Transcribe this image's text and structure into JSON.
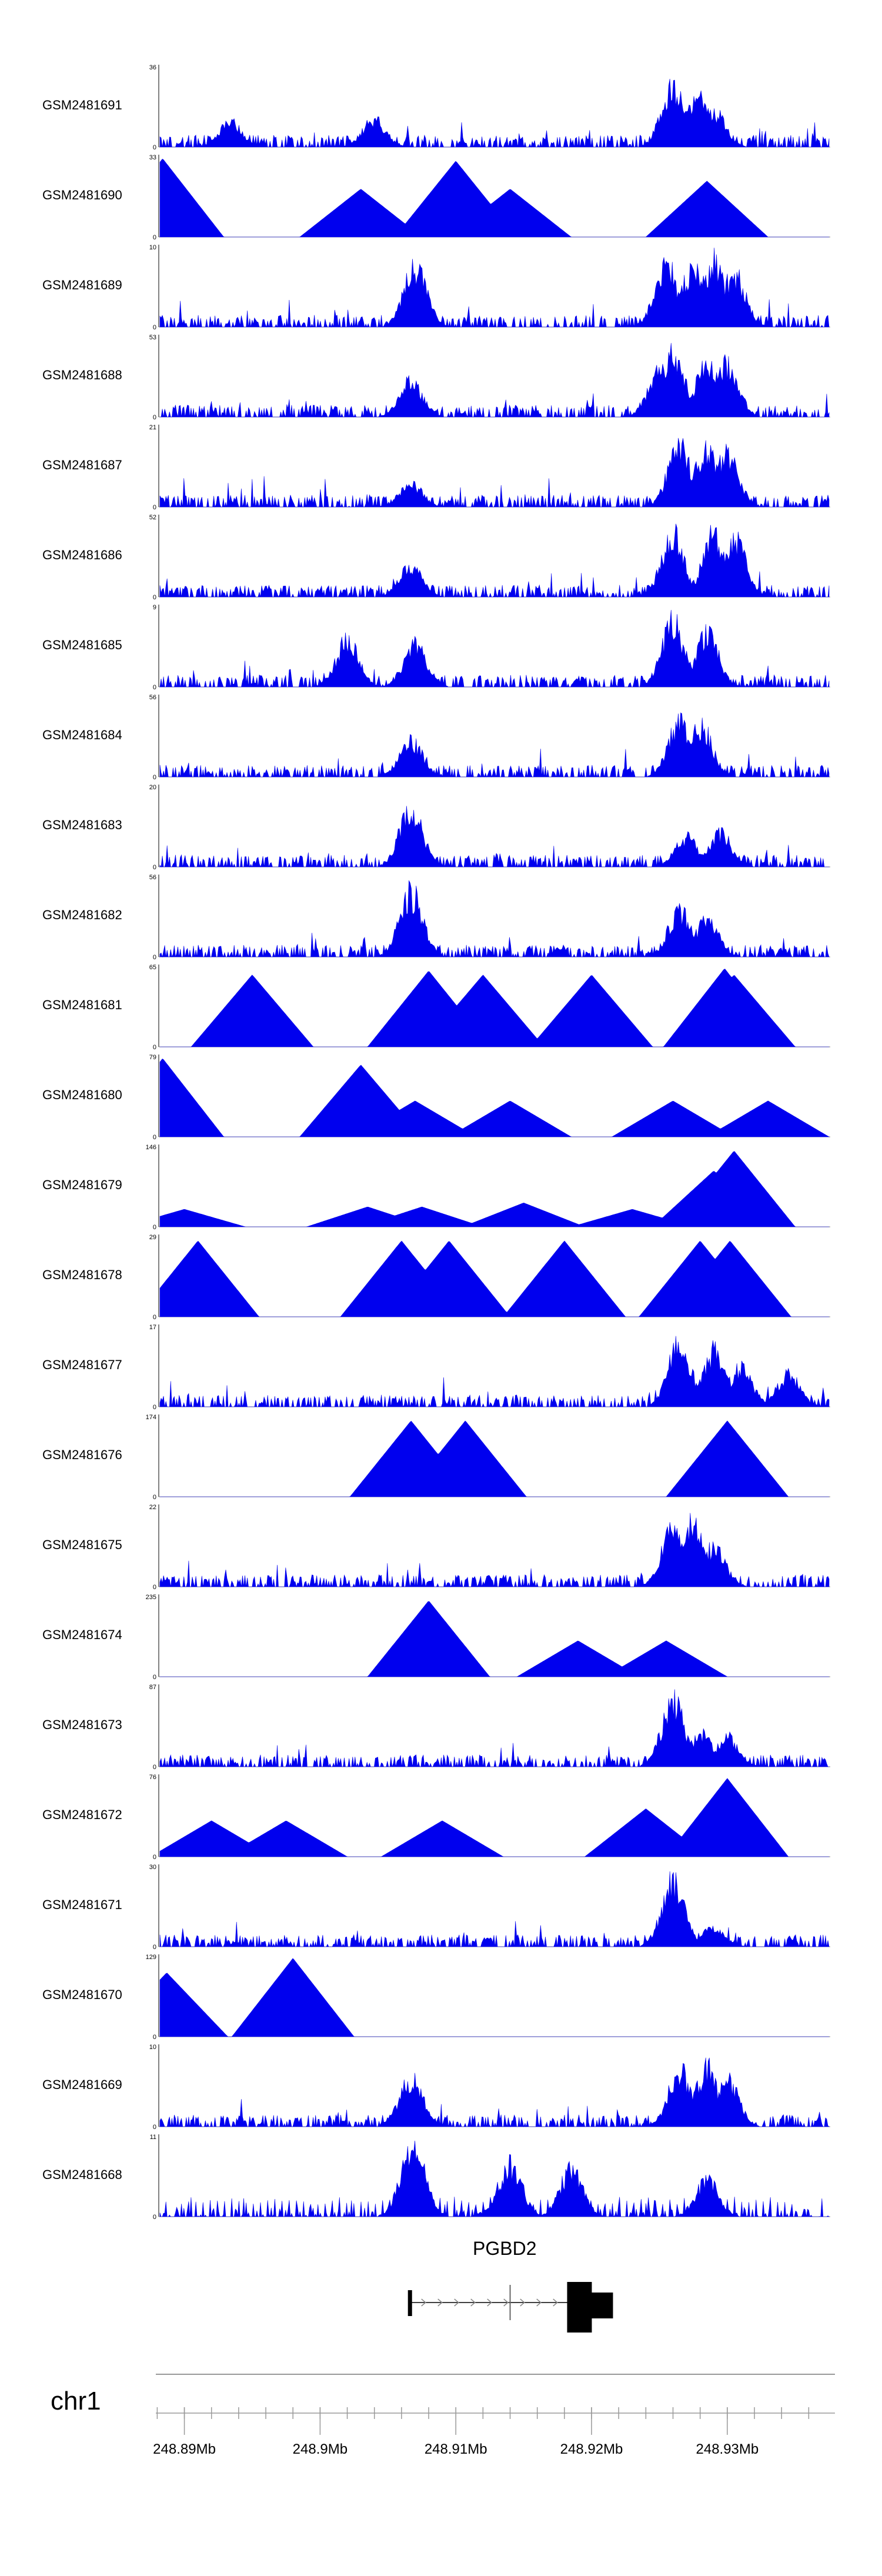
{
  "chart_data": {
    "type": "area",
    "title": "",
    "chromosome": "chr1",
    "xlim_mb": [
      248.8882,
      248.9375
    ],
    "x_ticks": [
      {
        "value": 248.89,
        "label": "248.89Mb"
      },
      {
        "value": 248.9,
        "label": "248.9Mb"
      },
      {
        "value": 248.91,
        "label": "248.91Mb"
      },
      {
        "value": 248.92,
        "label": "248.92Mb"
      },
      {
        "value": 248.93,
        "label": "248.93Mb"
      }
    ],
    "gene": {
      "name": "PGBD2",
      "start_mb": 248.9066,
      "end_mb": 248.9207,
      "exon_mb": [
        248.9066,
        248.914,
        248.919,
        248.9203
      ]
    },
    "series": [
      {
        "name": "GSM2481691",
        "max": 36,
        "min": 0,
        "shape": "dense",
        "peaks": [
          [
            248.8934,
            0.38
          ],
          [
            248.904,
            0.42
          ],
          [
            248.926,
            0.95
          ],
          [
            248.928,
            0.8
          ],
          [
            248.929,
            0.55
          ],
          [
            248.927,
            0.6
          ]
        ]
      },
      {
        "name": "GSM2481690",
        "max": 33,
        "min": 0,
        "shape": "sparse",
        "peaks": [
          [
            248.8884,
            0.98
          ],
          [
            248.903,
            0.6
          ],
          [
            248.91,
            0.95
          ],
          [
            248.914,
            0.6
          ],
          [
            248.9285,
            0.7
          ]
        ]
      },
      {
        "name": "GSM2481689",
        "max": 10,
        "min": 0,
        "shape": "dense",
        "peaks": [
          [
            248.907,
            0.9
          ],
          [
            248.9255,
            0.95
          ],
          [
            248.9275,
            0.9
          ],
          [
            248.929,
            1.0
          ],
          [
            248.9305,
            0.8
          ]
        ]
      },
      {
        "name": "GSM2481688",
        "max": 53,
        "min": 0,
        "shape": "dense",
        "peaks": [
          [
            248.9067,
            0.55
          ],
          [
            248.926,
            1.0
          ],
          [
            248.9285,
            0.85
          ],
          [
            248.93,
            0.8
          ],
          [
            248.925,
            0.7
          ]
        ]
      },
      {
        "name": "GSM2481687",
        "max": 21,
        "min": 0,
        "shape": "dense",
        "peaks": [
          [
            248.9067,
            0.35
          ],
          [
            248.9265,
            0.95
          ],
          [
            248.9285,
            0.9
          ],
          [
            248.93,
            0.8
          ]
        ]
      },
      {
        "name": "GSM2481686",
        "max": 52,
        "min": 0,
        "shape": "dense",
        "peaks": [
          [
            248.9067,
            0.48
          ],
          [
            248.926,
            0.95
          ],
          [
            248.929,
            0.95
          ],
          [
            248.9305,
            0.9
          ]
        ]
      },
      {
        "name": "GSM2481685",
        "max": 9,
        "min": 0,
        "shape": "dense",
        "peaks": [
          [
            248.902,
            0.7
          ],
          [
            248.907,
            0.65
          ],
          [
            248.926,
            0.98
          ],
          [
            248.9285,
            0.8
          ]
        ]
      },
      {
        "name": "GSM2481684",
        "max": 56,
        "min": 0,
        "shape": "dense",
        "peaks": [
          [
            248.9067,
            0.55
          ],
          [
            248.9265,
            0.85
          ],
          [
            248.928,
            0.8
          ]
        ]
      },
      {
        "name": "GSM2481683",
        "max": 20,
        "min": 0,
        "shape": "dense",
        "peaks": [
          [
            248.9067,
            0.9
          ],
          [
            248.927,
            0.45
          ],
          [
            248.9295,
            0.5
          ]
        ]
      },
      {
        "name": "GSM2481682",
        "max": 56,
        "min": 0,
        "shape": "dense",
        "peaks": [
          [
            248.9067,
            0.98
          ],
          [
            248.9265,
            0.7
          ],
          [
            248.9285,
            0.55
          ]
        ]
      },
      {
        "name": "GSM2481681",
        "max": 65,
        "min": 0,
        "shape": "sparse",
        "peaks": [
          [
            248.895,
            0.9
          ],
          [
            248.908,
            0.95
          ],
          [
            248.912,
            0.9
          ],
          [
            248.92,
            0.9
          ],
          [
            248.9298,
            0.98
          ],
          [
            248.9305,
            0.9
          ]
        ]
      },
      {
        "name": "GSM2481680",
        "max": 79,
        "min": 0,
        "shape": "sparse",
        "peaks": [
          [
            248.8884,
            0.98
          ],
          [
            248.903,
            0.9
          ],
          [
            248.907,
            0.45
          ],
          [
            248.914,
            0.45
          ],
          [
            248.926,
            0.45
          ],
          [
            248.933,
            0.45
          ]
        ]
      },
      {
        "name": "GSM2481679",
        "max": 146,
        "min": 0,
        "shape": "sparse",
        "peaks": [
          [
            248.89,
            0.22
          ],
          [
            248.9035,
            0.25
          ],
          [
            248.9075,
            0.25
          ],
          [
            248.915,
            0.3
          ],
          [
            248.923,
            0.22
          ],
          [
            248.929,
            0.7
          ],
          [
            248.9305,
            0.95
          ]
        ]
      },
      {
        "name": "GSM2481678",
        "max": 29,
        "min": 0,
        "shape": "sparse",
        "peaks": [
          [
            248.891,
            0.95
          ],
          [
            248.906,
            0.95
          ],
          [
            248.9095,
            0.95
          ],
          [
            248.918,
            0.95
          ],
          [
            248.928,
            0.95
          ],
          [
            248.9302,
            0.95
          ]
        ]
      },
      {
        "name": "GSM2481677",
        "max": 17,
        "min": 0,
        "shape": "dense",
        "peaks": [
          [
            248.9265,
            0.95
          ],
          [
            248.929,
            0.85
          ],
          [
            248.931,
            0.6
          ],
          [
            248.9345,
            0.5
          ]
        ]
      },
      {
        "name": "GSM2481676",
        "max": 174,
        "min": 0,
        "shape": "sparse",
        "peaks": [
          [
            248.9067,
            0.95
          ],
          [
            248.9107,
            0.95
          ],
          [
            248.93,
            0.95
          ]
        ]
      },
      {
        "name": "GSM2481675",
        "max": 22,
        "min": 0,
        "shape": "dense",
        "peaks": [
          [
            248.926,
            0.85
          ],
          [
            248.9275,
            0.98
          ],
          [
            248.929,
            0.6
          ]
        ]
      },
      {
        "name": "GSM2481674",
        "max": 235,
        "min": 0,
        "shape": "sparse",
        "peaks": [
          [
            248.908,
            0.95
          ],
          [
            248.919,
            0.45
          ],
          [
            248.9255,
            0.45
          ]
        ]
      },
      {
        "name": "GSM2481673",
        "max": 87,
        "min": 0,
        "shape": "dense",
        "peaks": [
          [
            248.926,
            0.98
          ],
          [
            248.928,
            0.5
          ],
          [
            248.93,
            0.45
          ]
        ]
      },
      {
        "name": "GSM2481672",
        "max": 76,
        "min": 0,
        "shape": "sparse",
        "peaks": [
          [
            248.892,
            0.45
          ],
          [
            248.8975,
            0.45
          ],
          [
            248.909,
            0.45
          ],
          [
            248.924,
            0.6
          ],
          [
            248.93,
            0.98
          ]
        ]
      },
      {
        "name": "GSM2481671",
        "max": 30,
        "min": 0,
        "shape": "dense",
        "peaks": [
          [
            248.926,
            0.98
          ],
          [
            248.929,
            0.3
          ]
        ]
      },
      {
        "name": "GSM2481670",
        "max": 129,
        "min": 0,
        "shape": "sparse",
        "peaks": [
          [
            248.8887,
            0.8
          ],
          [
            248.898,
            0.98
          ]
        ]
      },
      {
        "name": "GSM2481669",
        "max": 10,
        "min": 0,
        "shape": "dense",
        "peaks": [
          [
            248.9067,
            0.75
          ],
          [
            248.9265,
            0.85
          ],
          [
            248.9285,
            0.9
          ],
          [
            248.93,
            0.7
          ]
        ]
      },
      {
        "name": "GSM2481668",
        "max": 11,
        "min": 0,
        "shape": "sparse-dense",
        "peaks": [
          [
            248.9067,
            0.95
          ],
          [
            248.907,
            0.95
          ],
          [
            248.914,
            0.8
          ],
          [
            248.9185,
            0.7
          ],
          [
            248.9285,
            0.55
          ]
        ]
      }
    ]
  }
}
